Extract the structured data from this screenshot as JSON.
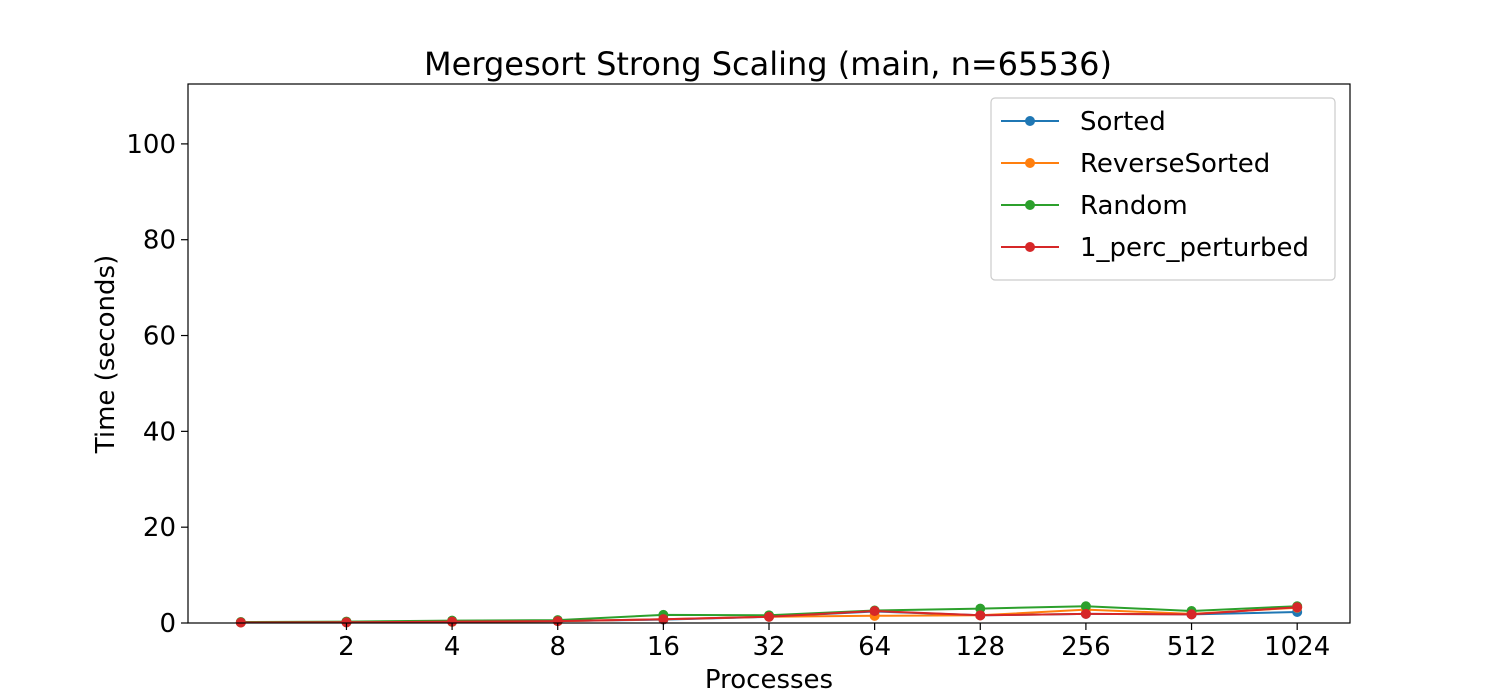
{
  "chart_data": {
    "type": "line",
    "title": "Mergesort Strong Scaling (main, n=65536)",
    "xlabel": "Processes",
    "ylabel": "Time (seconds)",
    "x": [
      1,
      2,
      4,
      8,
      16,
      32,
      64,
      128,
      256,
      512,
      1024
    ],
    "x_tick_values": [
      2,
      4,
      8,
      16,
      32,
      64,
      128,
      256,
      512,
      1024
    ],
    "x_tick_labels": [
      "2",
      "4",
      "8",
      "16",
      "32",
      "64",
      "128",
      "256",
      "512",
      "1024"
    ],
    "x_scale": "log2",
    "y_ticks": [
      0,
      20,
      40,
      60,
      80,
      100
    ],
    "y_tick_labels": [
      "0",
      "20",
      "40",
      "60",
      "80",
      "100"
    ],
    "ylim": [
      0,
      112.5
    ],
    "grid": false,
    "legend_position": "top-right",
    "series": [
      {
        "name": "Sorted",
        "color": "#1f77b4",
        "values": [
          0.1,
          0.15,
          0.25,
          0.4,
          0.7,
          1.3,
          2.4,
          1.6,
          1.9,
          1.8,
          2.3
        ]
      },
      {
        "name": "ReverseSorted",
        "color": "#ff7f0e",
        "values": [
          0.1,
          0.15,
          0.25,
          0.4,
          0.8,
          1.3,
          1.5,
          1.6,
          2.8,
          1.9,
          3.2
        ]
      },
      {
        "name": "Random",
        "color": "#2ca02c",
        "values": [
          0.2,
          0.3,
          0.5,
          0.6,
          1.7,
          1.6,
          2.6,
          3.0,
          3.5,
          2.5,
          3.5
        ]
      },
      {
        "name": "1_perc_perturbed",
        "color": "#d62728",
        "values": [
          0.1,
          0.15,
          0.3,
          0.4,
          0.8,
          1.3,
          2.5,
          1.6,
          1.9,
          1.8,
          3.3
        ]
      }
    ]
  }
}
